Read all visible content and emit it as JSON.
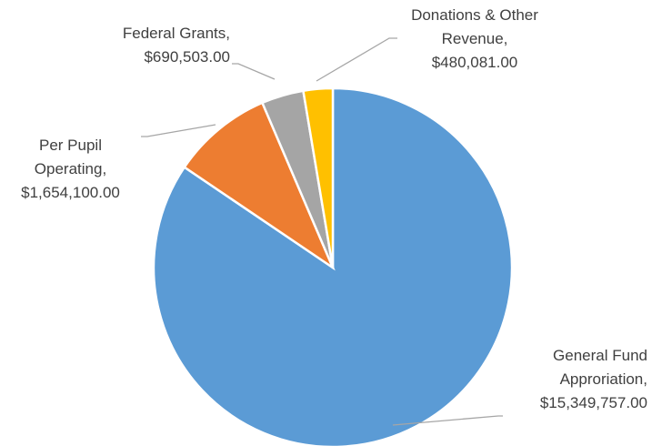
{
  "chart_data": {
    "type": "pie",
    "categories": [
      "General Fund Approriation",
      "Per Pupil Operating",
      "Federal Grants",
      "Donations & Other Revenue"
    ],
    "values": [
      15349757,
      1654100,
      690503,
      480081
    ],
    "value_labels": [
      "$15,349,757.00",
      "$1,654,100.00",
      "$690,503.00",
      "$480,081.00"
    ],
    "label_separator": ",",
    "colors": [
      "#5b9bd5",
      "#ed7d31",
      "#a5a5a5",
      "#ffc000"
    ]
  }
}
